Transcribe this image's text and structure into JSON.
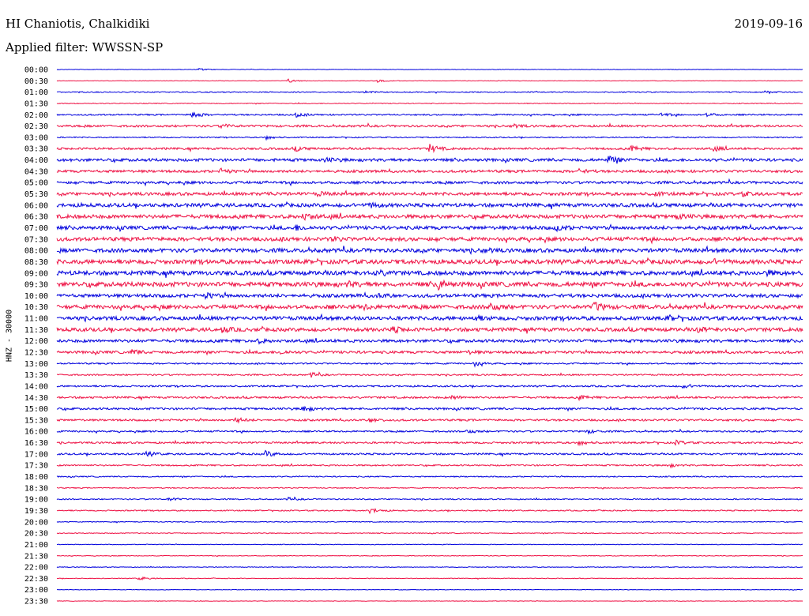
{
  "header": {
    "station": "HI Chaniotis, Chalkidiki",
    "date": "2019-09-16",
    "filter": "Applied filter: WWSSN-SP"
  },
  "channel_label": "HNZ - 30000",
  "colors": {
    "even": "#0000dd",
    "odd": "#ee1144"
  },
  "chart_data": {
    "type": "line",
    "title": "HI Chaniotis, Chalkidiki",
    "subtitle": "Applied filter: WWSSN-SP",
    "ylabel": "HNZ - 30000",
    "ytick_labels": [
      "00:00",
      "00:30",
      "01:00",
      "01:30",
      "02:00",
      "02:30",
      "03:00",
      "03:30",
      "04:00",
      "04:30",
      "05:00",
      "05:30",
      "06:00",
      "06:30",
      "07:00",
      "07:30",
      "08:00",
      "08:30",
      "09:00",
      "09:30",
      "10:00",
      "10:30",
      "11:00",
      "11:30",
      "12:00",
      "12:30",
      "13:00",
      "13:30",
      "14:00",
      "14:30",
      "15:00",
      "15:30",
      "16:00",
      "16:30",
      "17:00",
      "17:30",
      "18:00",
      "18:30",
      "19:00",
      "19:30",
      "20:00",
      "20:30",
      "21:00",
      "21:30",
      "22:00",
      "22:30",
      "23:00",
      "23:30"
    ],
    "trace_colors": [
      "#0000dd",
      "#ee1144"
    ],
    "noise_level": [
      0.3,
      0.3,
      0.6,
      0.5,
      0.9,
      1.3,
      0.7,
      1.3,
      1.8,
      1.6,
      1.6,
      1.9,
      2.2,
      2.3,
      2.2,
      2.3,
      2.4,
      2.6,
      2.6,
      2.8,
      2.1,
      2.4,
      2.3,
      2.2,
      1.8,
      1.6,
      0.9,
      0.9,
      1.0,
      1.2,
      1.3,
      1.2,
      1.0,
      1.1,
      1.1,
      0.9,
      0.7,
      0.6,
      0.7,
      0.7,
      0.5,
      0.5,
      0.4,
      0.4,
      0.4,
      0.4,
      0.3,
      0.3
    ],
    "events": [
      [
        [
          0.19,
          1.5
        ]
      ],
      [
        [
          0.31,
          2.5
        ],
        [
          0.43,
          1.5
        ]
      ],
      [
        [
          0.41,
          1.5
        ],
        [
          0.95,
          1.5
        ]
      ],
      [],
      [
        [
          0.18,
          5
        ],
        [
          0.32,
          2.5
        ],
        [
          0.81,
          2
        ],
        [
          0.87,
          2
        ]
      ],
      [
        [
          0.22,
          2.5
        ],
        [
          0.61,
          2
        ]
      ],
      [
        [
          0.28,
          2.5
        ]
      ],
      [
        [
          0.32,
          2.5
        ],
        [
          0.5,
          5
        ],
        [
          0.77,
          3
        ],
        [
          0.88,
          2.5
        ]
      ],
      [
        [
          0.36,
          2.5
        ],
        [
          0.74,
          5
        ]
      ],
      [
        [
          0.22,
          2.5
        ],
        [
          0.7,
          2
        ]
      ],
      [],
      [
        [
          0.28,
          2
        ],
        [
          0.35,
          2
        ],
        [
          0.8,
          2
        ],
        [
          0.92,
          2
        ]
      ],
      [
        [
          0.42,
          2.5
        ]
      ],
      [
        [
          0.33,
          4
        ],
        [
          0.83,
          3
        ]
      ],
      [
        [
          0.32,
          3
        ],
        [
          0.67,
          3
        ]
      ],
      [
        [
          0.37,
          2
        ]
      ],
      [
        [
          0.57,
          2
        ]
      ],
      [
        [
          0.88,
          2
        ]
      ],
      [
        [
          0.43,
          3
        ],
        [
          0.95,
          2.5
        ]
      ],
      [
        [
          0.51,
          6
        ],
        [
          0.39,
          2.5
        ]
      ],
      [
        [
          0.2,
          3
        ],
        [
          0.43,
          2
        ]
      ],
      [
        [
          0.41,
          3
        ],
        [
          0.58,
          5
        ],
        [
          0.72,
          6
        ]
      ],
      [
        [
          0.56,
          3
        ],
        [
          0.82,
          2.5
        ]
      ],
      [
        [
          0.22,
          3
        ],
        [
          0.45,
          3
        ],
        [
          0.86,
          2.5
        ]
      ],
      [
        [
          0.27,
          2
        ]
      ],
      [
        [
          0.1,
          3
        ],
        [
          0.3,
          2
        ],
        [
          0.55,
          2
        ]
      ],
      [
        [
          0.56,
          3
        ]
      ],
      [
        [
          0.34,
          3
        ]
      ],
      [
        [
          0.84,
          3
        ]
      ],
      [
        [
          0.53,
          2.5
        ],
        [
          0.7,
          2.5
        ]
      ],
      [
        [
          0.33,
          3.5
        ]
      ],
      [
        [
          0.24,
          3
        ],
        [
          0.42,
          3
        ]
      ],
      [
        [
          0.55,
          2.5
        ],
        [
          0.71,
          2.5
        ]
      ],
      [
        [
          0.7,
          3
        ],
        [
          0.83,
          2.5
        ]
      ],
      [
        [
          0.12,
          3
        ],
        [
          0.28,
          4
        ]
      ],
      [
        [
          0.82,
          2.5
        ]
      ],
      [],
      [],
      [
        [
          0.15,
          2.5
        ],
        [
          0.31,
          2
        ]
      ],
      [
        [
          0.42,
          3.5
        ]
      ],
      [],
      [],
      [],
      [],
      [],
      [
        [
          0.11,
          2.5
        ]
      ],
      [],
      []
    ]
  }
}
